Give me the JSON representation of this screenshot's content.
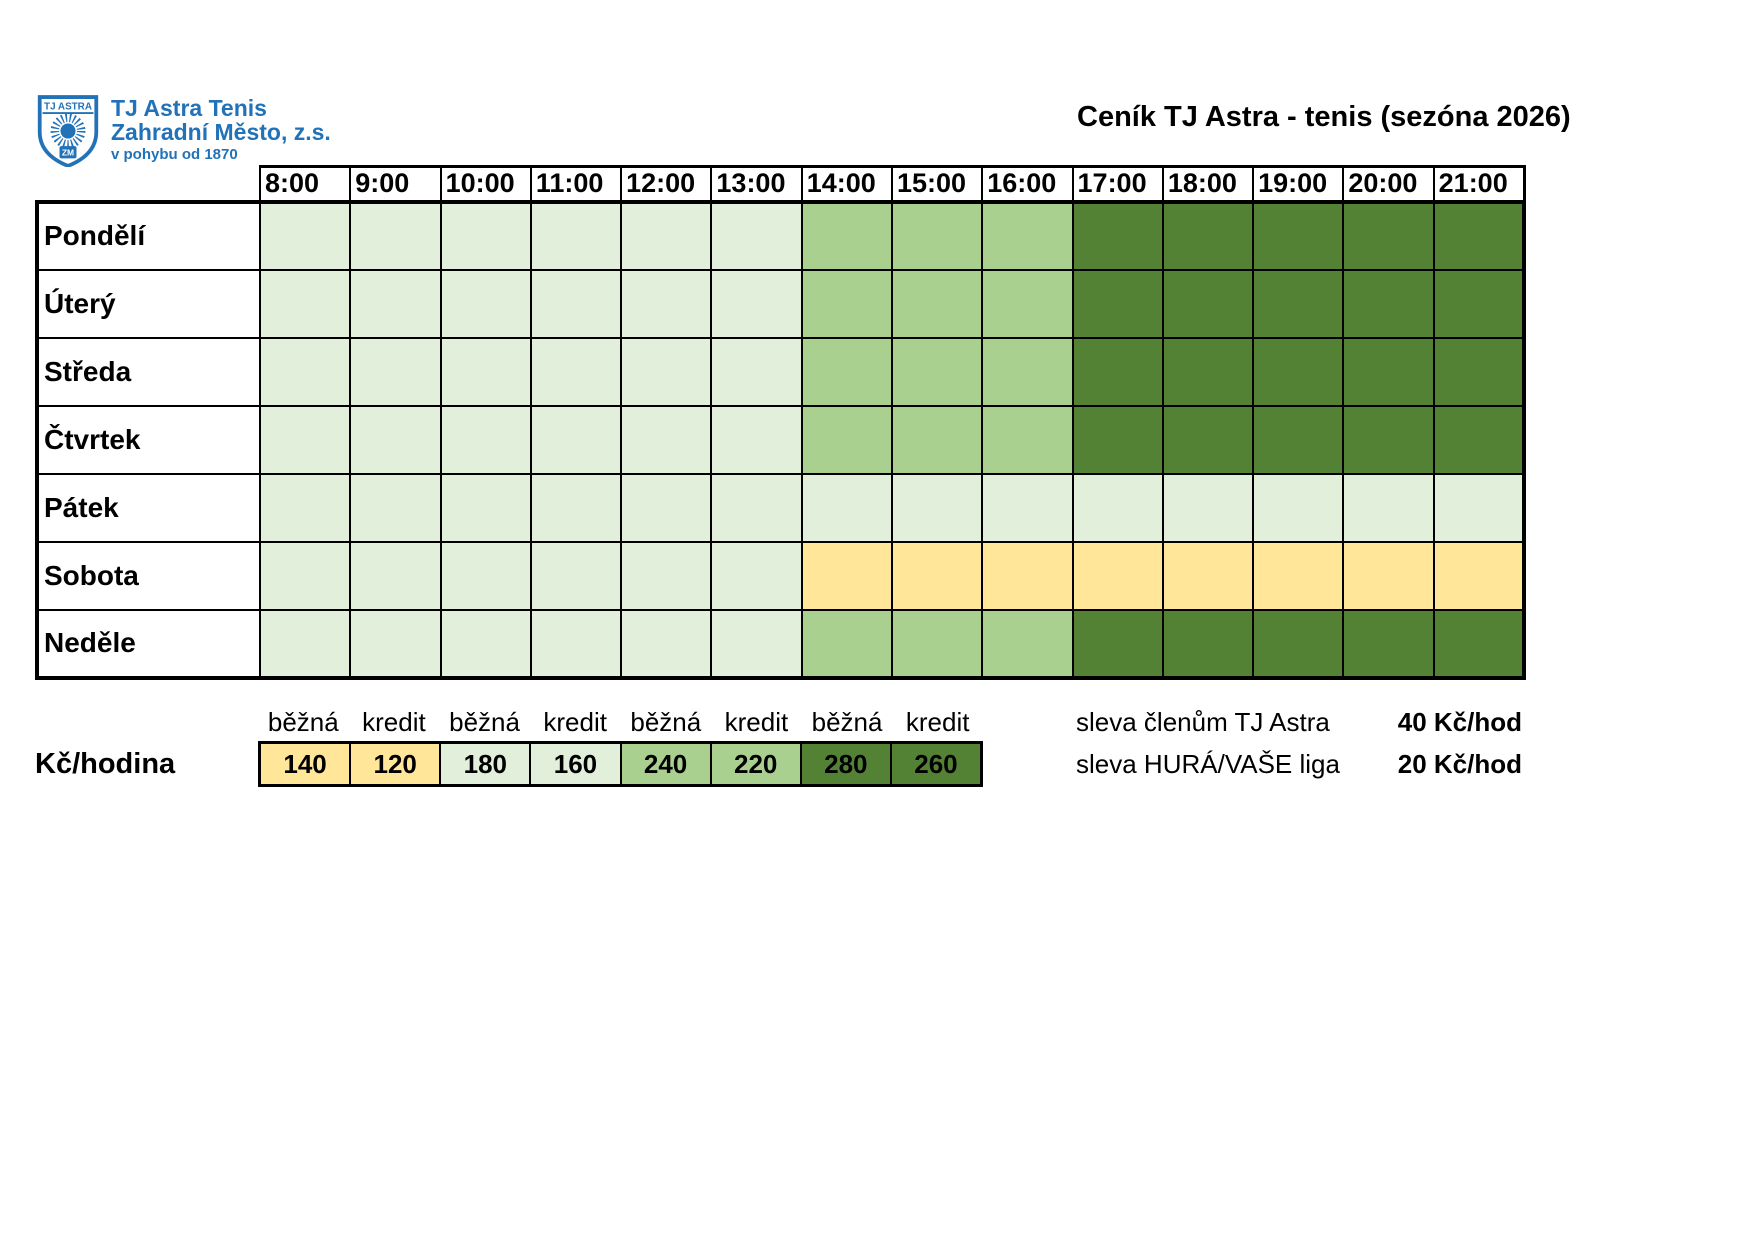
{
  "logo": {
    "shield_top_text": "TJ ASTRA",
    "shield_bottom_text": "ZM",
    "org_line1": "TJ Astra Tenis",
    "org_line2": "Zahradní Město, z.s.",
    "org_line3": "v pohybu od 1870"
  },
  "title": "Ceník TJ Astra - tenis (sezóna 2026)",
  "colors": {
    "brand_blue": "#2272B8",
    "pale": "#E2EFDA",
    "medium": "#A9D08E",
    "dark": "#548235",
    "yellow": "#FFE699"
  },
  "schedule": {
    "times": [
      "8:00",
      "9:00",
      "10:00",
      "11:00",
      "12:00",
      "13:00",
      "14:00",
      "15:00",
      "16:00",
      "17:00",
      "18:00",
      "19:00",
      "20:00",
      "21:00"
    ],
    "days": [
      {
        "label": "Pondělí",
        "tiers": [
          "pale",
          "pale",
          "pale",
          "pale",
          "pale",
          "pale",
          "medium",
          "medium",
          "medium",
          "dark",
          "dark",
          "dark",
          "dark",
          "dark"
        ]
      },
      {
        "label": "Úterý",
        "tiers": [
          "pale",
          "pale",
          "pale",
          "pale",
          "pale",
          "pale",
          "medium",
          "medium",
          "medium",
          "dark",
          "dark",
          "dark",
          "dark",
          "dark"
        ]
      },
      {
        "label": "Středa",
        "tiers": [
          "pale",
          "pale",
          "pale",
          "pale",
          "pale",
          "pale",
          "medium",
          "medium",
          "medium",
          "dark",
          "dark",
          "dark",
          "dark",
          "dark"
        ]
      },
      {
        "label": "Čtvrtek",
        "tiers": [
          "pale",
          "pale",
          "pale",
          "pale",
          "pale",
          "pale",
          "medium",
          "medium",
          "medium",
          "dark",
          "dark",
          "dark",
          "dark",
          "dark"
        ]
      },
      {
        "label": "Pátek",
        "tiers": [
          "pale",
          "pale",
          "pale",
          "pale",
          "pale",
          "pale",
          "pale",
          "pale",
          "pale",
          "pale",
          "pale",
          "pale",
          "pale",
          "pale"
        ]
      },
      {
        "label": "Sobota",
        "tiers": [
          "pale",
          "pale",
          "pale",
          "pale",
          "pale",
          "pale",
          "yellow",
          "yellow",
          "yellow",
          "yellow",
          "yellow",
          "yellow",
          "yellow",
          "yellow"
        ]
      },
      {
        "label": "Neděle",
        "tiers": [
          "pale",
          "pale",
          "pale",
          "pale",
          "pale",
          "pale",
          "medium",
          "medium",
          "medium",
          "dark",
          "dark",
          "dark",
          "dark",
          "dark"
        ]
      }
    ]
  },
  "pricing": {
    "unit_label": "Kč/hodina",
    "columns": [
      {
        "type": "běžná",
        "price": "140",
        "tier": "yellow"
      },
      {
        "type": "kredit",
        "price": "120",
        "tier": "yellow"
      },
      {
        "type": "běžná",
        "price": "180",
        "tier": "pale"
      },
      {
        "type": "kredit",
        "price": "160",
        "tier": "pale"
      },
      {
        "type": "běžná",
        "price": "240",
        "tier": "medium"
      },
      {
        "type": "kredit",
        "price": "220",
        "tier": "medium"
      },
      {
        "type": "běžná",
        "price": "280",
        "tier": "dark"
      },
      {
        "type": "kredit",
        "price": "260",
        "tier": "dark"
      }
    ]
  },
  "discounts": [
    {
      "label": "sleva členům TJ Astra",
      "value": "40 Kč/hod"
    },
    {
      "label": "sleva HURÁ/VAŠE liga",
      "value": "20 Kč/hod"
    }
  ]
}
